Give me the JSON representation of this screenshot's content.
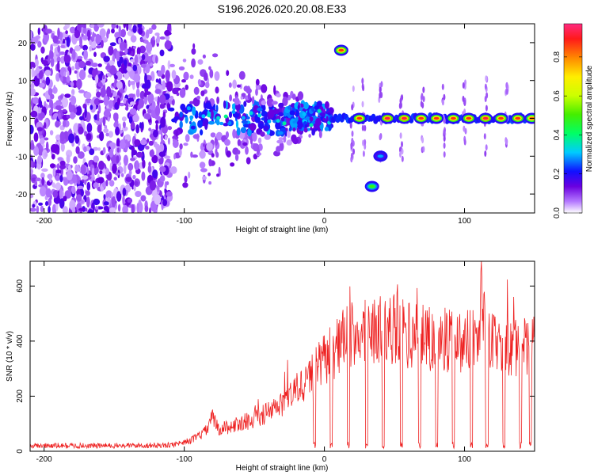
{
  "title": "S196.2026.020.20.08.E33",
  "chart_data": [
    {
      "type": "heatmap",
      "xlabel": "Height of straight line (km)",
      "ylabel": "Frequency (Hz)",
      "xlim": [
        -210,
        150
      ],
      "ylim": [
        -25,
        25
      ],
      "xticks": [
        "-200",
        "-100",
        "0",
        "100"
      ],
      "yticks": [
        "-20",
        "-10",
        "0",
        "10",
        "20"
      ],
      "colorbar": {
        "label": "Normalized spectral amplitude",
        "range": [
          0,
          0.97
        ],
        "ticks": [
          "0.0",
          "0.2",
          "0.4",
          "0.6",
          "0.8"
        ]
      },
      "noise_region_km": [
        -210,
        -110
      ],
      "transition_region_km": [
        -110,
        5
      ],
      "features": [
        {
          "height_km": 12,
          "frequency_hz": 18,
          "amplitude": 0.9
        },
        {
          "height_km": 25,
          "frequency_hz": 0,
          "amplitude": 0.9
        },
        {
          "height_km": 34,
          "frequency_hz": -18,
          "amplitude": 0.5
        },
        {
          "height_km": 40,
          "frequency_hz": -10,
          "amplitude": 0.3
        },
        {
          "height_km": 45,
          "frequency_hz": 0,
          "amplitude": 0.95
        },
        {
          "height_km": 57,
          "frequency_hz": 0,
          "amplitude": 0.95
        },
        {
          "height_km": 69,
          "frequency_hz": 0,
          "amplitude": 0.9
        },
        {
          "height_km": 80,
          "frequency_hz": 0,
          "amplitude": 0.9
        },
        {
          "height_km": 92,
          "frequency_hz": 0,
          "amplitude": 0.9
        },
        {
          "height_km": 103,
          "frequency_hz": 0,
          "amplitude": 0.9
        },
        {
          "height_km": 115,
          "frequency_hz": 0,
          "amplitude": 0.95
        },
        {
          "height_km": 126,
          "frequency_hz": 0,
          "amplitude": 0.9
        },
        {
          "height_km": 138,
          "frequency_hz": 0,
          "amplitude": 0.9
        },
        {
          "height_km": 148,
          "frequency_hz": 0,
          "amplitude": 0.85
        }
      ]
    },
    {
      "type": "line",
      "xlabel": "Height of straight line (km)",
      "ylabel": "SNR (10 * v/v)",
      "xlim": [
        -210,
        150
      ],
      "ylim": [
        0,
        690
      ],
      "xticks": [
        "-200",
        "-100",
        "0",
        "100"
      ],
      "yticks": [
        "0",
        "200",
        "400",
        "600"
      ],
      "color": "#ee2222",
      "x": [
        -210,
        -150,
        -110,
        -95,
        -85,
        -80,
        -75,
        -60,
        -50,
        -40,
        -30,
        -20,
        -10,
        0,
        5,
        10,
        20,
        30,
        40,
        50,
        60,
        70,
        80,
        90,
        100,
        110,
        112,
        116,
        120,
        130,
        140,
        150
      ],
      "y": [
        20,
        20,
        22,
        40,
        70,
        120,
        80,
        100,
        120,
        140,
        170,
        220,
        270,
        330,
        360,
        390,
        420,
        430,
        440,
        450,
        420,
        410,
        400,
        405,
        400,
        420,
        600,
        380,
        400,
        380,
        370,
        390
      ],
      "dropouts_km": [
        -7,
        5,
        17,
        30,
        42,
        55,
        68,
        80,
        92,
        105,
        116,
        128,
        140,
        147
      ]
    }
  ]
}
